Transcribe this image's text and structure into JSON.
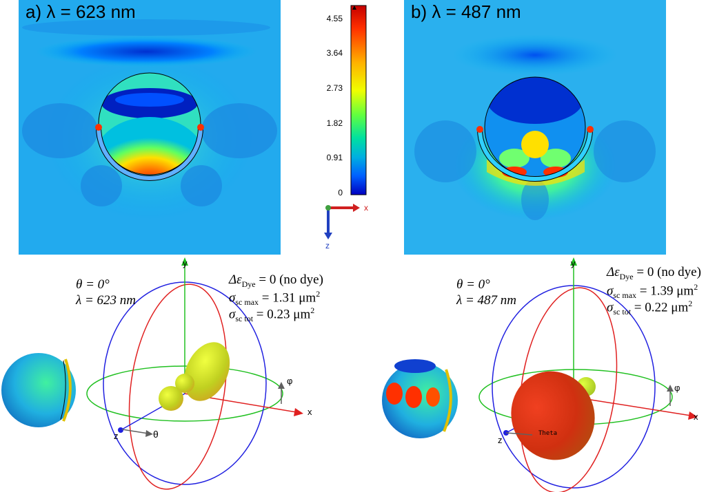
{
  "colorbar": {
    "ticks": [
      "4.55",
      "3.64",
      "2.73",
      "1.82",
      "0.91",
      "0"
    ],
    "tick_values": [
      4.55,
      3.64,
      2.73,
      1.82,
      0.91,
      0
    ],
    "max": 4.9,
    "colors": [
      "#c40000",
      "#ff3000",
      "#ffb000",
      "#f0ff00",
      "#60ff40",
      "#00e0a0",
      "#00b0e0",
      "#0060ff",
      "#0000c0"
    ],
    "axis_x": "x",
    "axis_z": "z"
  },
  "panel_a": {
    "label": "a) λ = 623 nm",
    "theta": "θ = 0°",
    "lambda": "λ = 623 nm",
    "delta_eps": "Δε",
    "delta_eps_sub": "Dye",
    "delta_eps_rest": " = 0 (no dye)",
    "sigma_max_pre": "σ",
    "sigma_max_sub": "sc max",
    "sigma_max_val": " = 1.31 μm",
    "sigma_tot_pre": "σ",
    "sigma_tot_sub": "sc tot",
    "sigma_tot_val": " = 0.23 μm",
    "sq": "2",
    "ax_y": "y",
    "ax_x": "x",
    "ax_z": "z",
    "ax_phi": "φ",
    "ax_theta": "θ"
  },
  "panel_b": {
    "label": "b) λ = 487 nm",
    "theta": "θ = 0°",
    "lambda": "λ = 487 nm",
    "delta_eps": "Δε",
    "delta_eps_sub": "Dye",
    "delta_eps_rest": " = 0 (no dye)",
    "sigma_max_pre": "σ",
    "sigma_max_sub": "sc max",
    "sigma_max_val": " = 1.39 μm",
    "sigma_tot_pre": "σ",
    "sigma_tot_sub": "sc tot",
    "sigma_tot_val": " = 0.22 μm",
    "sq": "2",
    "ax_y": "y",
    "ax_x": "x",
    "ax_z": "z",
    "ax_phi": "φ",
    "ax_theta": "Theta"
  }
}
